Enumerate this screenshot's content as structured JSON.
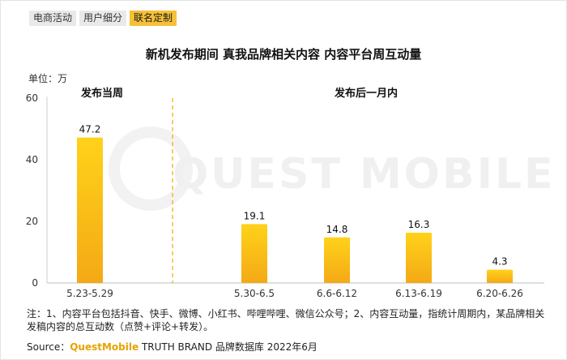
{
  "tabs": [
    {
      "label": "电商活动"
    },
    {
      "label": "用户细分"
    },
    {
      "label": "联名定制"
    }
  ],
  "header": {
    "unit": "单位：万"
  },
  "watermark": "QUEST MOBILE",
  "chart_data": {
    "type": "bar",
    "title": "新机发布期间 真我品牌相关内容 内容平台周互动量",
    "categories": [
      "5.23-5.29",
      "5.30-6.5",
      "6.6-6.12",
      "6.13-6.19",
      "6.20-6.26"
    ],
    "values": [
      47.2,
      19.1,
      14.8,
      16.3,
      4.3
    ],
    "data_labels": [
      "47.2",
      "19.1",
      "14.8",
      "16.3",
      "4.3"
    ],
    "yticks": [
      "0",
      "20",
      "40",
      "60"
    ],
    "ylim": [
      0,
      60
    ],
    "xlabel": "",
    "ylabel": "",
    "grid": false,
    "groups": [
      {
        "label": "发布当周"
      },
      {
        "label": "发布后一月内"
      }
    ],
    "bar_color": "#f9c21a"
  },
  "footer": {
    "note": "注：1、内容平台包括抖音、快手、微博、小红书、哔哩哔哩、微信公众号；2、内容互动量，指统计周期内，某品牌相关发稿内容的总互动数（点赞+评论+转发）。",
    "source_prefix": "Source：",
    "source_brand": "QuestMobile",
    "source_suffix": " TRUTH BRAND 品牌数据库 2022年6月"
  }
}
